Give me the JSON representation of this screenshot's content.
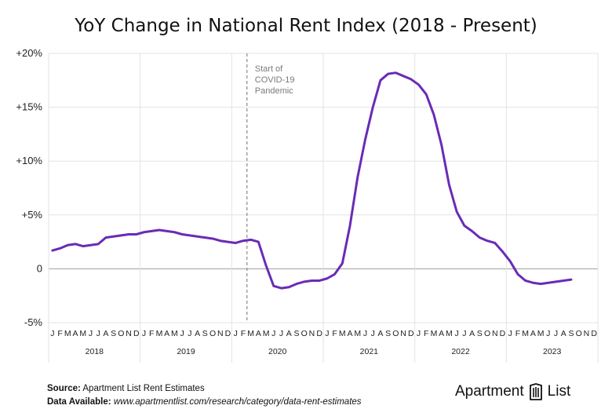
{
  "footer": {
    "source_label": "Source:",
    "source_text": "Apartment List Rent Estimates",
    "available_label": "Data Available:",
    "available_text": "www.apartmentlist.com/research/category/data-rent-estimates"
  },
  "brand": {
    "word1": "Apartment",
    "word2": "List",
    "icon": "apartment-list-logo-icon"
  },
  "colors": {
    "line": "#6a2bb5",
    "grid": "#e3e3e3",
    "zero_line": "#b5b5b5",
    "annotation": "#8a8a8a"
  },
  "chart_data": {
    "type": "line",
    "title": "YoY Change in National Rent Index (2018 - Present)",
    "xlabel": "",
    "ylabel": "",
    "ylim": [
      -5,
      20
    ],
    "yticks": [
      -5,
      0,
      5,
      10,
      15,
      20
    ],
    "ytick_labels": [
      "-5%",
      "0",
      "+5%",
      "+10%",
      "+15%",
      "+20%"
    ],
    "month_labels": [
      "J",
      "F",
      "M",
      "A",
      "M",
      "J",
      "J",
      "A",
      "S",
      "O",
      "N",
      "D",
      "J",
      "F",
      "M",
      "A",
      "M",
      "J",
      "J",
      "A",
      "S",
      "O",
      "N",
      "D",
      "J",
      "F",
      "M",
      "A",
      "M",
      "J",
      "J",
      "A",
      "S",
      "O",
      "N",
      "D",
      "J",
      "F",
      "M",
      "A",
      "M",
      "J",
      "J",
      "A",
      "S",
      "O",
      "N",
      "D",
      "J",
      "F",
      "M",
      "A",
      "M",
      "J",
      "J",
      "A",
      "S",
      "O",
      "N",
      "D",
      "J",
      "F",
      "M",
      "A",
      "M",
      "J",
      "J",
      "A",
      "S",
      "O",
      "N",
      "D"
    ],
    "year_labels": [
      "2018",
      "2019",
      "2020",
      "2021",
      "2022",
      "2023"
    ],
    "grid": true,
    "annotation": {
      "lines": [
        "Start of",
        "COVID-19",
        "Pandemic"
      ],
      "month": "2020-03"
    },
    "series": [
      {
        "values": [
          1.7,
          1.9,
          2.2,
          2.3,
          2.1,
          2.2,
          2.3,
          2.9,
          3.0,
          3.1,
          3.2,
          3.2,
          3.4,
          3.5,
          3.6,
          3.5,
          3.4,
          3.2,
          3.1,
          3.0,
          2.9,
          2.8,
          2.6,
          2.5,
          2.4,
          2.6,
          2.7,
          2.5,
          0.3,
          -1.6,
          -1.8,
          -1.7,
          -1.4,
          -1.2,
          -1.1,
          -1.1,
          -0.9,
          -0.5,
          0.5,
          4.0,
          8.5,
          12.0,
          15.0,
          17.5,
          18.1,
          18.2,
          17.9,
          17.6,
          17.1,
          16.2,
          14.3,
          11.5,
          7.8,
          5.3,
          4.0,
          3.5,
          2.9,
          2.6,
          2.4,
          1.6,
          0.7,
          -0.5,
          -1.1,
          -1.3,
          -1.4,
          -1.3,
          -1.2,
          -1.1,
          -1.0
        ]
      }
    ]
  }
}
